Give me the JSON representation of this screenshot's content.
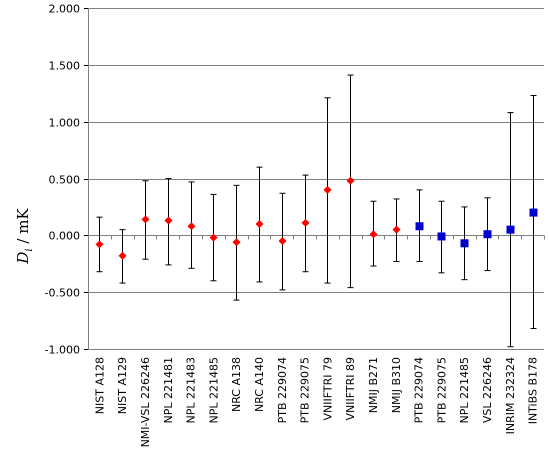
{
  "chart_data": {
    "type": "scatter",
    "ylabel": {
      "symbol": "D",
      "subscript": "i",
      "unit": " / mK"
    },
    "ylim": [
      -1.0,
      2.0
    ],
    "yticks": [
      "2.000",
      "1.500",
      "1.000",
      "0.500",
      "0.000",
      "-0.500",
      "-1.000"
    ],
    "ytick_values": [
      2.0,
      1.5,
      1.0,
      0.5,
      0.0,
      -0.5,
      -1.0
    ],
    "grid": "horizontal",
    "categories": [
      "NIST A128",
      "NIST A129",
      "NMI-VSL 226246",
      "NPL 221481",
      "NPL 221483",
      "NPL 221485",
      "NRC A138",
      "NRC A140",
      "PTB 229074",
      "PTB 229075",
      "VNIIFTRI 79",
      "VNIIFTRI 89",
      "NMIJ B271",
      "NMIJ B310",
      "PTB 229074",
      "PTB 229075",
      "NPL 221485",
      "VSL 226246",
      "INRIM 232324",
      "INTiBS B178"
    ],
    "series": [
      {
        "marker": "diamond",
        "color": "#ff0000",
        "points": [
          {
            "index": 0,
            "y": -0.08,
            "low": -0.32,
            "high": 0.16
          },
          {
            "index": 1,
            "y": -0.18,
            "low": -0.42,
            "high": 0.05
          },
          {
            "index": 2,
            "y": 0.14,
            "low": -0.21,
            "high": 0.48
          },
          {
            "index": 3,
            "y": 0.13,
            "low": -0.26,
            "high": 0.5
          },
          {
            "index": 4,
            "y": 0.08,
            "low": -0.29,
            "high": 0.47
          },
          {
            "index": 5,
            "y": -0.02,
            "low": -0.4,
            "high": 0.36
          },
          {
            "index": 6,
            "y": -0.06,
            "low": -0.57,
            "high": 0.44
          },
          {
            "index": 7,
            "y": 0.1,
            "low": -0.41,
            "high": 0.6
          },
          {
            "index": 8,
            "y": -0.05,
            "low": -0.48,
            "high": 0.37
          },
          {
            "index": 9,
            "y": 0.11,
            "low": -0.32,
            "high": 0.53
          },
          {
            "index": 10,
            "y": 0.4,
            "low": -0.42,
            "high": 1.21
          },
          {
            "index": 11,
            "y": 0.48,
            "low": -0.46,
            "high": 1.41
          },
          {
            "index": 12,
            "y": 0.01,
            "low": -0.27,
            "high": 0.3
          },
          {
            "index": 13,
            "y": 0.05,
            "low": -0.23,
            "high": 0.32
          }
        ]
      },
      {
        "marker": "square",
        "color": "#0000cc",
        "points": [
          {
            "index": 14,
            "y": 0.08,
            "low": -0.23,
            "high": 0.4
          },
          {
            "index": 15,
            "y": -0.01,
            "low": -0.33,
            "high": 0.3
          },
          {
            "index": 16,
            "y": -0.07,
            "low": -0.39,
            "high": 0.25
          },
          {
            "index": 17,
            "y": 0.01,
            "low": -0.31,
            "high": 0.33
          },
          {
            "index": 18,
            "y": 0.05,
            "low": -0.98,
            "high": 1.08
          },
          {
            "index": 19,
            "y": 0.2,
            "low": -0.82,
            "high": 1.23
          }
        ]
      }
    ]
  }
}
